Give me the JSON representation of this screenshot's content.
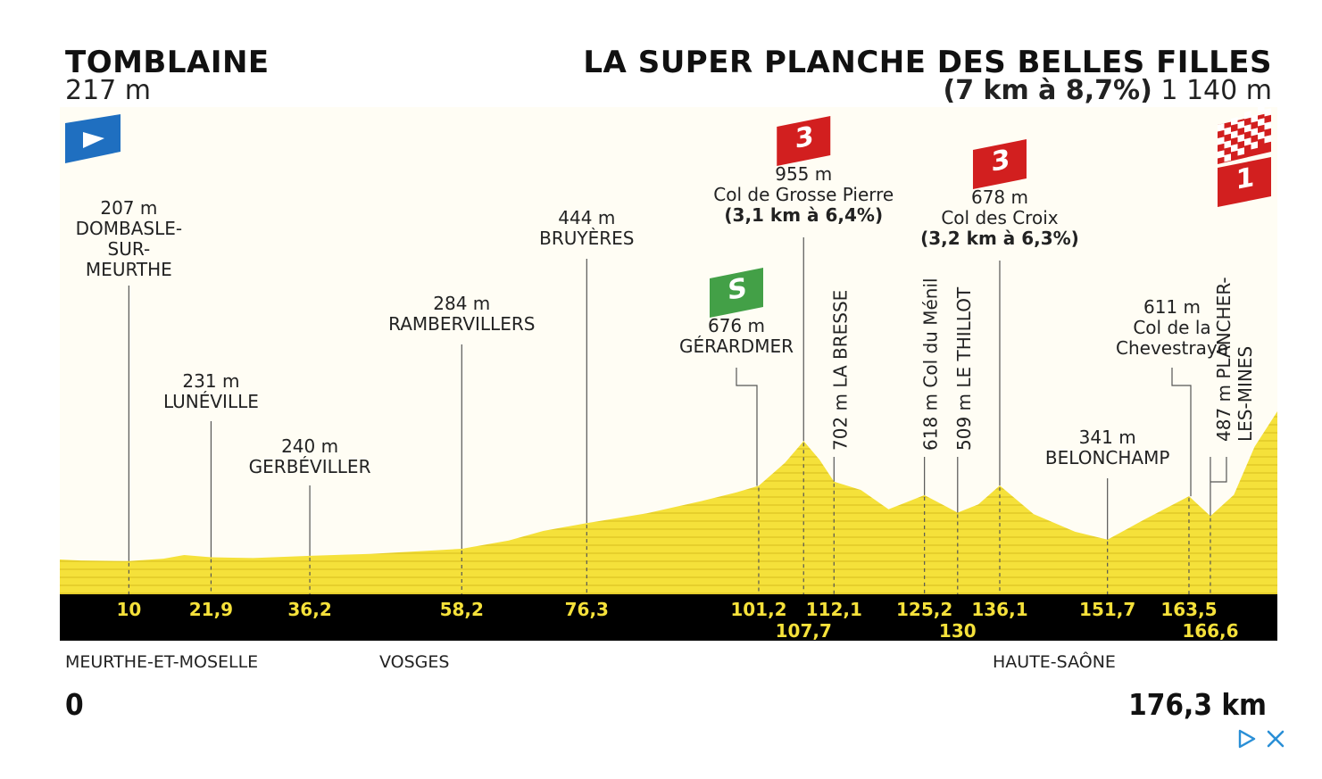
{
  "start": {
    "name": "TOMBLAINE",
    "altitude": "217 m"
  },
  "finish": {
    "name": "LA SUPER PLANCHE DES BELLES FILLES",
    "climb": "(7 km à 8,7%)",
    "altitude": "1 140 m"
  },
  "departments": [
    "MEURTHE-ET-MOSELLE",
    "VOSGES",
    "HAUTE-SAÔNE"
  ],
  "distance": {
    "start_label": "0",
    "end_label": "176,3 km"
  },
  "badges": {
    "sprint": "S",
    "cat3": "3",
    "cat1": "1"
  },
  "colors": {
    "profile": "#f5e13a",
    "band": "#000000",
    "km_text": "#f5e13a",
    "cat_red": "#d21f1f",
    "sprint_green": "#43a047",
    "start_blue": "#1f6fc0"
  },
  "icons": [
    "start-flag-icon",
    "sprint-icon",
    "category-3-climb-icon",
    "category-1-climb-icon",
    "finish-checkered-flag-icon",
    "ad-choices-icon",
    "close-icon"
  ],
  "chart_data": {
    "type": "area",
    "x_unit": "km",
    "y_unit": "m",
    "xlim": [
      0,
      176.3
    ],
    "ylim": [
      0,
      1140
    ],
    "profile": [
      {
        "km": 0,
        "alt": 217
      },
      {
        "km": 3,
        "alt": 211
      },
      {
        "km": 10,
        "alt": 207
      },
      {
        "km": 15,
        "alt": 222
      },
      {
        "km": 18,
        "alt": 245
      },
      {
        "km": 21.9,
        "alt": 231
      },
      {
        "km": 28,
        "alt": 226
      },
      {
        "km": 36.2,
        "alt": 240
      },
      {
        "km": 45,
        "alt": 252
      },
      {
        "km": 52,
        "alt": 268
      },
      {
        "km": 58.2,
        "alt": 284
      },
      {
        "km": 65,
        "alt": 335
      },
      {
        "km": 70,
        "alt": 395
      },
      {
        "km": 76.3,
        "alt": 444
      },
      {
        "km": 85,
        "alt": 505
      },
      {
        "km": 93,
        "alt": 582
      },
      {
        "km": 98,
        "alt": 635
      },
      {
        "km": 101.2,
        "alt": 676
      },
      {
        "km": 105,
        "alt": 820
      },
      {
        "km": 107.7,
        "alt": 955
      },
      {
        "km": 110,
        "alt": 840
      },
      {
        "km": 112.1,
        "alt": 702
      },
      {
        "km": 116,
        "alt": 650
      },
      {
        "km": 120,
        "alt": 530
      },
      {
        "km": 125.2,
        "alt": 618
      },
      {
        "km": 128,
        "alt": 555
      },
      {
        "km": 130,
        "alt": 509
      },
      {
        "km": 133,
        "alt": 560
      },
      {
        "km": 136.1,
        "alt": 678
      },
      {
        "km": 141,
        "alt": 500
      },
      {
        "km": 147,
        "alt": 390
      },
      {
        "km": 151.7,
        "alt": 341
      },
      {
        "km": 157,
        "alt": 465
      },
      {
        "km": 163.5,
        "alt": 611
      },
      {
        "km": 166.6,
        "alt": 487
      },
      {
        "km": 170,
        "alt": 620
      },
      {
        "km": 173,
        "alt": 920
      },
      {
        "km": 176.3,
        "alt": 1140
      }
    ],
    "points": [
      {
        "km": 10,
        "km_label": "10",
        "lines": [
          "207 m",
          "DOMBASLE-",
          "SUR-",
          "MEURTHE"
        ]
      },
      {
        "km": 21.9,
        "km_label": "21,9",
        "lines": [
          "231 m",
          "LUNÉVILLE"
        ]
      },
      {
        "km": 36.2,
        "km_label": "36,2",
        "lines": [
          "240 m",
          "GERBÉVILLER"
        ]
      },
      {
        "km": 58.2,
        "km_label": "58,2",
        "lines": [
          "284 m",
          "RAMBERVILLERS"
        ]
      },
      {
        "km": 76.3,
        "km_label": "76,3",
        "lines": [
          "444 m",
          "BRUYÈRES"
        ]
      },
      {
        "km": 101.2,
        "km_label": "101,2",
        "lines": [
          "676 m",
          "GÉRARDMER"
        ],
        "badge": "sprint"
      },
      {
        "km": 107.7,
        "km_label": "107,7",
        "lines": [
          "955 m",
          "Col de Grosse Pierre",
          "(3,1 km à 6,4%)"
        ],
        "badge": "cat3"
      },
      {
        "km": 112.1,
        "km_label": "112,1",
        "vertical": "702 m LA BRESSE"
      },
      {
        "km": 125.2,
        "km_label": "125,2",
        "vertical": "618 m Col du Ménil"
      },
      {
        "km": 130,
        "km_label": "130",
        "vertical": "509 m LE THILLOT"
      },
      {
        "km": 136.1,
        "km_label": "136,1",
        "lines": [
          "678 m",
          "Col des Croix",
          "(3,2 km à 6,3%)"
        ],
        "badge": "cat3"
      },
      {
        "km": 151.7,
        "km_label": "151,7",
        "lines": [
          "341 m",
          "BELONCHAMP"
        ]
      },
      {
        "km": 163.5,
        "km_label": "163,5",
        "lines": [
          "611 m",
          "Col de la",
          "Chevestraye"
        ]
      },
      {
        "km": 166.6,
        "km_label": "166,6",
        "vertical2": [
          "487 m PLANCHER-",
          "LES-MINES"
        ]
      }
    ]
  }
}
